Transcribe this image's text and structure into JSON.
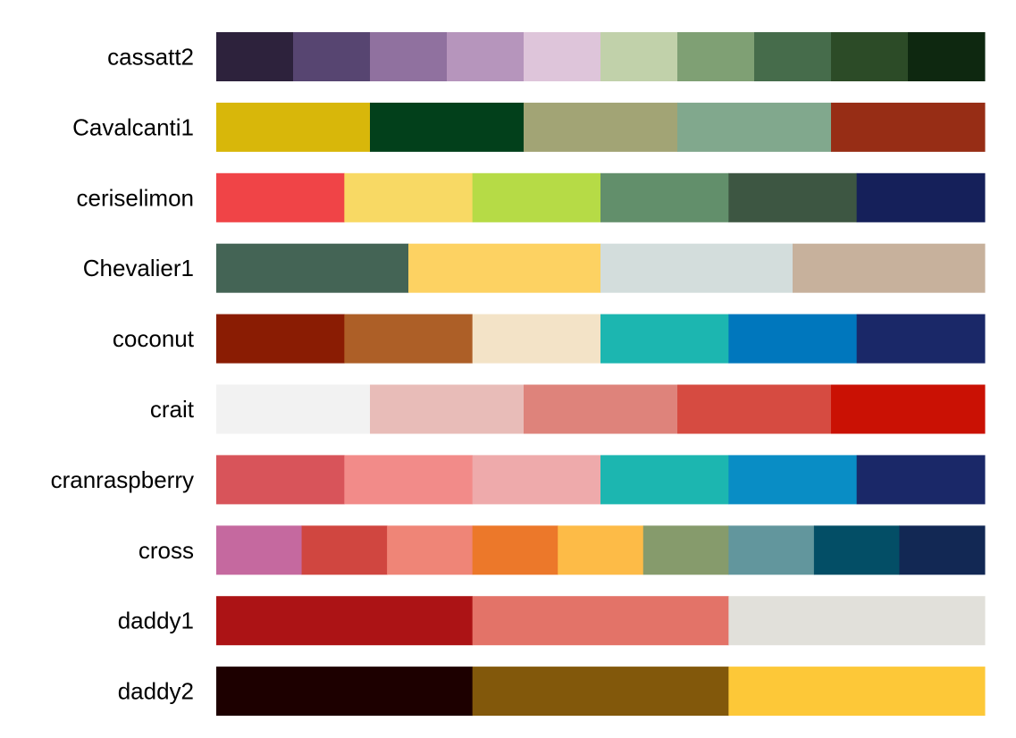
{
  "chart_data": {
    "type": "table",
    "title": "",
    "xlabel": "",
    "ylabel": "",
    "palettes": [
      {
        "name": "cassatt2",
        "colors": [
          "#2D223C",
          "#574571",
          "#90719F",
          "#B695BC",
          "#DEC5DA",
          "#C1D1AA",
          "#7FA074",
          "#466C4B",
          "#2C4B27",
          "#0E2810"
        ]
      },
      {
        "name": "Cavalcanti1",
        "colors": [
          "#D8B70A",
          "#02401B",
          "#A2A475",
          "#81A88D",
          "#972D15"
        ]
      },
      {
        "name": "ceriselimon",
        "colors": [
          "#F04447",
          "#F8D964",
          "#B6DB46",
          "#628F6B",
          "#3D5642",
          "#15205A"
        ]
      },
      {
        "name": "Chevalier1",
        "colors": [
          "#446455",
          "#FDD262",
          "#D3DDDC",
          "#C7B19C"
        ]
      },
      {
        "name": "coconut",
        "colors": [
          "#8A1C03",
          "#AD5F27",
          "#F3E3C7",
          "#1CB6B0",
          "#0077BD",
          "#1A2868"
        ]
      },
      {
        "name": "crait",
        "colors": [
          "#F2F2F2",
          "#E8BCB8",
          "#DE837B",
          "#D64B41",
          "#CA1104"
        ]
      },
      {
        "name": "cranraspberry",
        "colors": [
          "#D8545A",
          "#F28B89",
          "#EEAAAB",
          "#1CB6B0",
          "#098DC5",
          "#1A2868"
        ]
      },
      {
        "name": "cross",
        "colors": [
          "#C5699F",
          "#D04640",
          "#EF8577",
          "#EC782A",
          "#FDBB47",
          "#869B6C",
          "#62969D",
          "#034E66",
          "#122854"
        ]
      },
      {
        "name": "daddy1",
        "colors": [
          "#AC1315",
          "#E37368",
          "#E1E0DA"
        ]
      },
      {
        "name": "daddy2",
        "colors": [
          "#1D0000",
          "#82580B",
          "#FDC838"
        ]
      }
    ]
  }
}
